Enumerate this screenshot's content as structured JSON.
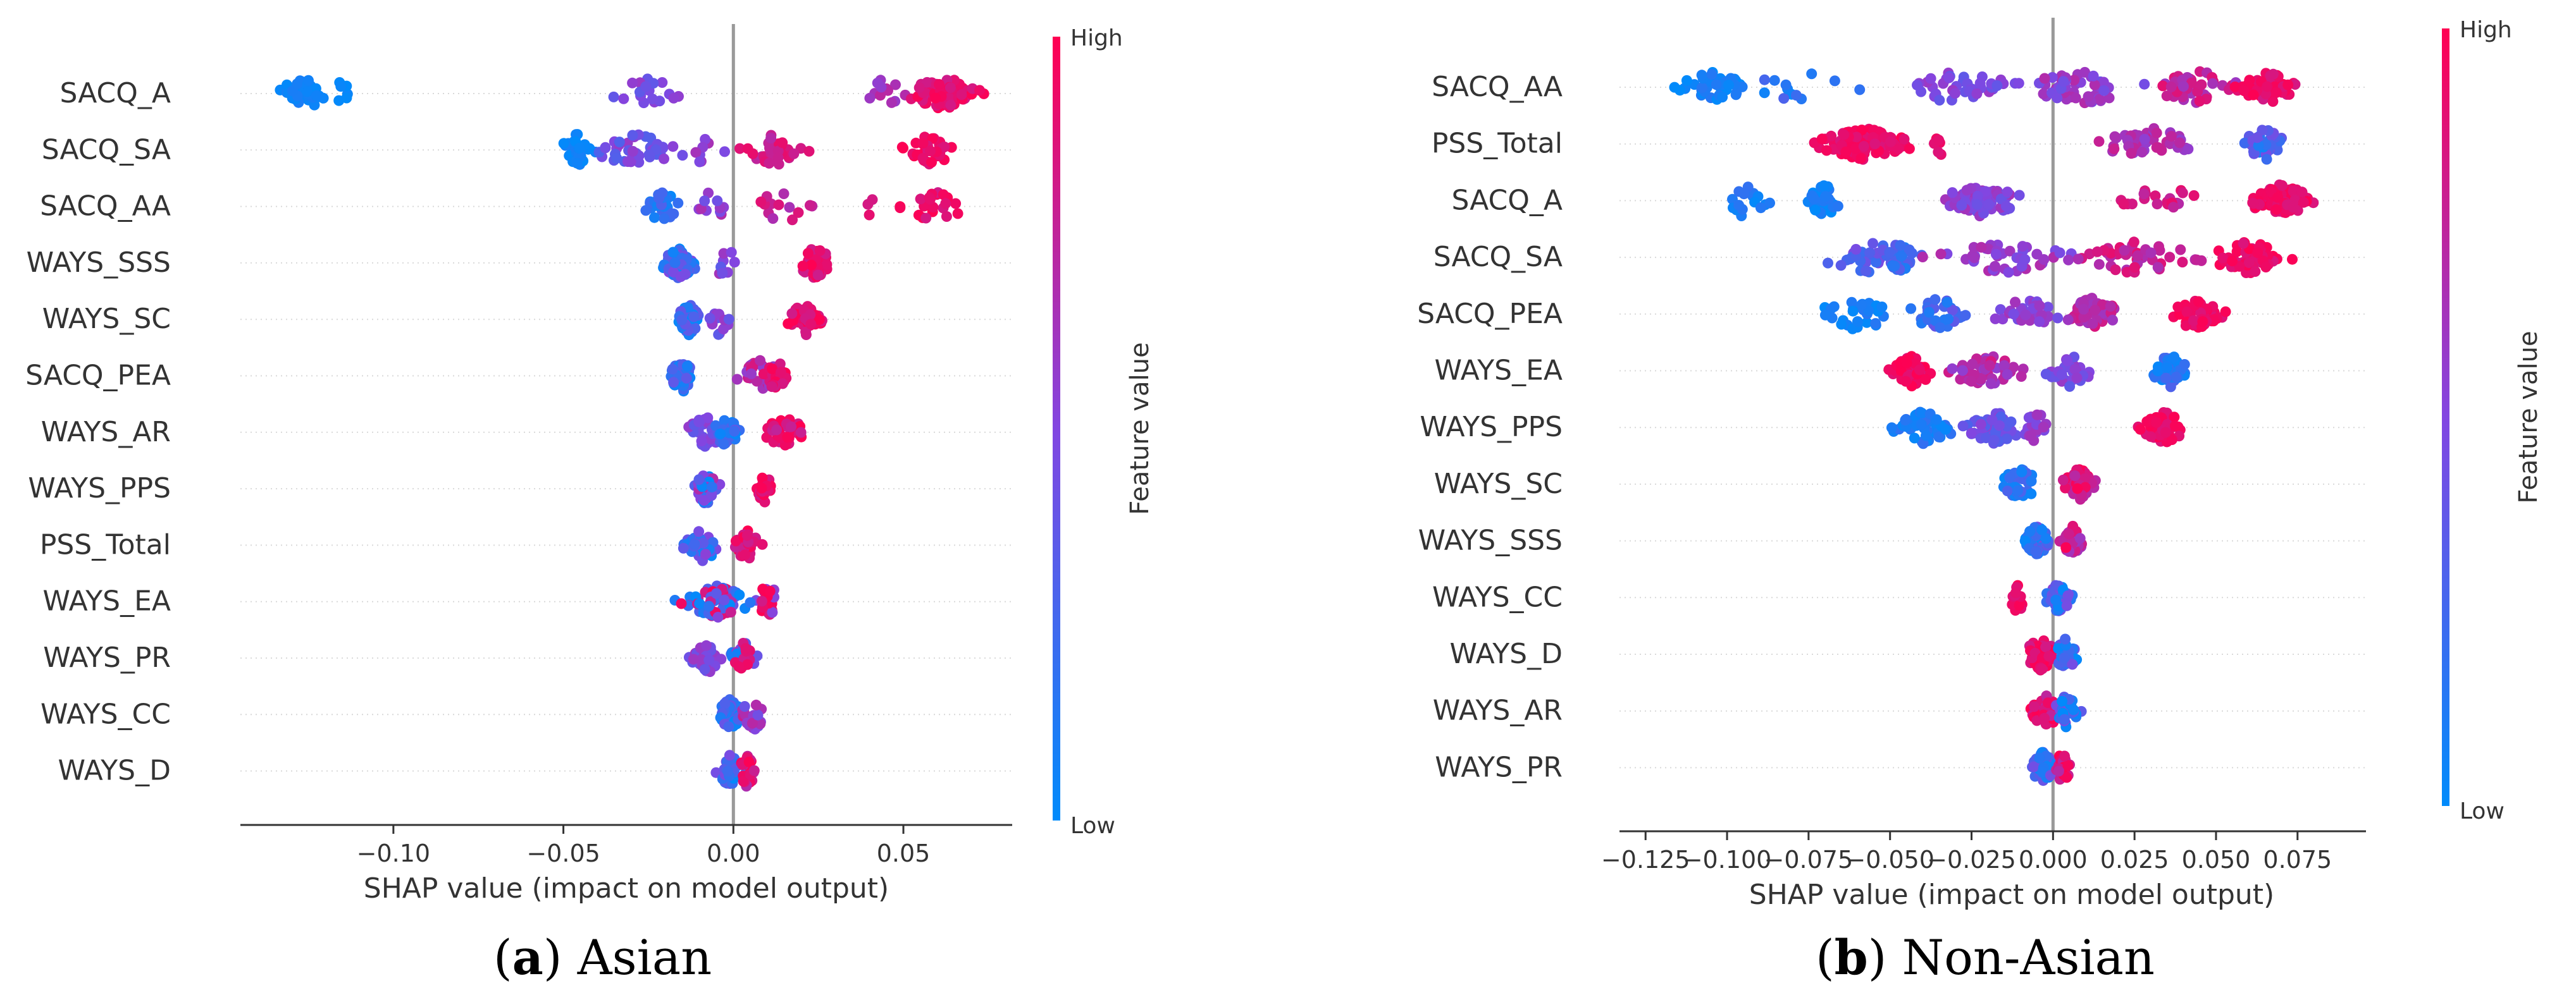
{
  "colors": {
    "low": "#008bfb",
    "high": "#ff0052",
    "zero_line": "#999999",
    "axis": "#333333",
    "grid": "#d9d9d9"
  },
  "chart_data": [
    {
      "type": "scatter",
      "subtype": "shap-beeswarm",
      "caption_label": "a",
      "caption_text": "Asian",
      "xlabel": "SHAP value (impact on model output)",
      "colorbar_label": "Feature value",
      "colorbar_high": "High",
      "colorbar_low": "Low",
      "xlim": [
        -0.145,
        0.082
      ],
      "xticks": [
        -0.1,
        -0.05,
        0.0,
        0.05
      ],
      "xtick_labels": [
        "−0.10",
        "−0.05",
        "0.00",
        "0.05"
      ],
      "features": [
        {
          "name": "SACQ_A",
          "clusters": [
            {
              "center": -0.127,
              "spread": 0.007,
              "count": 40,
              "low": 0.0,
              "high": 0.1
            },
            {
              "center": -0.115,
              "spread": 0.002,
              "count": 6,
              "low": 0.0,
              "high": 0.05
            },
            {
              "center": -0.025,
              "spread": 0.008,
              "count": 18,
              "low": 0.35,
              "high": 0.6
            },
            {
              "center": 0.045,
              "spread": 0.006,
              "count": 12,
              "low": 0.55,
              "high": 0.75
            },
            {
              "center": 0.062,
              "spread": 0.009,
              "count": 70,
              "low": 0.8,
              "high": 1.0
            }
          ]
        },
        {
          "name": "SACQ_SA",
          "clusters": [
            {
              "center": -0.046,
              "spread": 0.004,
              "count": 30,
              "low": 0.0,
              "high": 0.1
            },
            {
              "center": -0.028,
              "spread": 0.012,
              "count": 40,
              "low": 0.3,
              "high": 0.6
            },
            {
              "center": -0.008,
              "spread": 0.004,
              "count": 8,
              "low": 0.4,
              "high": 0.65
            },
            {
              "center": 0.012,
              "spread": 0.007,
              "count": 30,
              "low": 0.7,
              "high": 0.95
            },
            {
              "center": 0.058,
              "spread": 0.006,
              "count": 40,
              "low": 0.85,
              "high": 1.0
            }
          ]
        },
        {
          "name": "SACQ_AA",
          "clusters": [
            {
              "center": -0.021,
              "spread": 0.004,
              "count": 30,
              "low": 0.0,
              "high": 0.3
            },
            {
              "center": -0.006,
              "spread": 0.005,
              "count": 10,
              "low": 0.4,
              "high": 0.7
            },
            {
              "center": 0.015,
              "spread": 0.009,
              "count": 14,
              "low": 0.65,
              "high": 0.9
            },
            {
              "center": 0.04,
              "spread": 0.001,
              "count": 3,
              "low": 0.7,
              "high": 0.9
            },
            {
              "center": 0.058,
              "spread": 0.008,
              "count": 22,
              "low": 0.8,
              "high": 1.0
            }
          ]
        },
        {
          "name": "WAYS_SSS",
          "clusters": [
            {
              "center": -0.016,
              "spread": 0.004,
              "count": 60,
              "low": 0.0,
              "high": 0.5
            },
            {
              "center": -0.003,
              "spread": 0.004,
              "count": 8,
              "low": 0.35,
              "high": 0.65
            },
            {
              "center": 0.024,
              "spread": 0.004,
              "count": 40,
              "low": 0.8,
              "high": 1.0
            }
          ]
        },
        {
          "name": "WAYS_SC",
          "clusters": [
            {
              "center": -0.013,
              "spread": 0.003,
              "count": 55,
              "low": 0.0,
              "high": 0.4
            },
            {
              "center": -0.004,
              "spread": 0.003,
              "count": 14,
              "low": 0.3,
              "high": 0.6
            },
            {
              "center": 0.021,
              "spread": 0.004,
              "count": 40,
              "low": 0.8,
              "high": 1.0
            }
          ]
        },
        {
          "name": "SACQ_PEA",
          "clusters": [
            {
              "center": -0.015,
              "spread": 0.003,
              "count": 55,
              "low": 0.0,
              "high": 0.4
            },
            {
              "center": 0.008,
              "spread": 0.005,
              "count": 40,
              "low": 0.55,
              "high": 0.85
            },
            {
              "center": 0.013,
              "spread": 0.003,
              "count": 20,
              "low": 0.8,
              "high": 1.0
            }
          ]
        },
        {
          "name": "WAYS_AR",
          "clusters": [
            {
              "center": -0.008,
              "spread": 0.005,
              "count": 30,
              "low": 0.35,
              "high": 0.6
            },
            {
              "center": -0.002,
              "spread": 0.003,
              "count": 30,
              "low": 0.0,
              "high": 0.4
            },
            {
              "center": 0.015,
              "spread": 0.005,
              "count": 35,
              "low": 0.75,
              "high": 1.0
            }
          ]
        },
        {
          "name": "WAYS_PPS",
          "clusters": [
            {
              "center": -0.008,
              "spread": 0.003,
              "count": 50,
              "low": 0.0,
              "high": 0.7
            },
            {
              "center": 0.009,
              "spread": 0.002,
              "count": 25,
              "low": 0.8,
              "high": 1.0
            }
          ]
        },
        {
          "name": "PSS_Total",
          "clusters": [
            {
              "center": -0.009,
              "spread": 0.004,
              "count": 40,
              "low": 0.0,
              "high": 0.55
            },
            {
              "center": 0.004,
              "spread": 0.003,
              "count": 40,
              "low": 0.75,
              "high": 1.0
            }
          ]
        },
        {
          "name": "WAYS_EA",
          "clusters": [
            {
              "center": -0.005,
              "spread": 0.008,
              "count": 60,
              "low": 0.0,
              "high": 1.0
            },
            {
              "center": 0.01,
              "spread": 0.004,
              "count": 20,
              "low": 0.5,
              "high": 1.0
            }
          ]
        },
        {
          "name": "WAYS_PR",
          "clusters": [
            {
              "center": -0.008,
              "spread": 0.004,
              "count": 40,
              "low": 0.35,
              "high": 0.65
            },
            {
              "center": 0.003,
              "spread": 0.003,
              "count": 30,
              "low": 0.0,
              "high": 0.6
            },
            {
              "center": 0.003,
              "spread": 0.002,
              "count": 10,
              "low": 0.8,
              "high": 1.0
            }
          ]
        },
        {
          "name": "WAYS_CC",
          "clusters": [
            {
              "center": -0.001,
              "spread": 0.003,
              "count": 55,
              "low": 0.0,
              "high": 0.4
            },
            {
              "center": 0.006,
              "spread": 0.003,
              "count": 25,
              "low": 0.4,
              "high": 0.9
            }
          ]
        },
        {
          "name": "WAYS_D",
          "clusters": [
            {
              "center": -0.001,
              "spread": 0.003,
              "count": 45,
              "low": 0.0,
              "high": 0.5
            },
            {
              "center": 0.004,
              "spread": 0.002,
              "count": 25,
              "low": 0.6,
              "high": 1.0
            }
          ]
        }
      ]
    },
    {
      "type": "scatter",
      "subtype": "shap-beeswarm",
      "caption_label": "b",
      "caption_text": "Non-Asian",
      "xlabel": "SHAP value (impact on model output)",
      "colorbar_label": "Feature value",
      "colorbar_high": "High",
      "colorbar_low": "Low",
      "xlim": [
        -0.133,
        0.096
      ],
      "xticks": [
        -0.125,
        -0.1,
        -0.075,
        -0.05,
        -0.025,
        0.0,
        0.025,
        0.05,
        0.075
      ],
      "xtick_labels": [
        "−0.125",
        "−0.100",
        "−0.075",
        "−0.050",
        "−0.025",
        "0.000",
        "0.025",
        "0.050",
        "0.075"
      ],
      "features": [
        {
          "name": "SACQ_AA",
          "clusters": [
            {
              "center": -0.105,
              "spread": 0.008,
              "count": 45,
              "low": 0.0,
              "high": 0.15
            },
            {
              "center": -0.078,
              "spread": 0.012,
              "count": 12,
              "low": 0.0,
              "high": 0.3
            },
            {
              "center": -0.03,
              "spread": 0.015,
              "count": 40,
              "low": 0.35,
              "high": 0.6
            },
            {
              "center": 0.01,
              "spread": 0.015,
              "count": 50,
              "low": 0.4,
              "high": 0.7
            },
            {
              "center": 0.045,
              "spread": 0.012,
              "count": 40,
              "low": 0.6,
              "high": 0.9
            },
            {
              "center": 0.066,
              "spread": 0.007,
              "count": 70,
              "low": 0.8,
              "high": 1.0
            }
          ]
        },
        {
          "name": "PSS_Total",
          "clusters": [
            {
              "center": -0.058,
              "spread": 0.011,
              "count": 130,
              "low": 0.85,
              "high": 1.0
            },
            {
              "center": -0.035,
              "spread": 0.003,
              "count": 6,
              "low": 0.8,
              "high": 1.0
            },
            {
              "center": 0.03,
              "spread": 0.012,
              "count": 45,
              "low": 0.55,
              "high": 0.8
            },
            {
              "center": 0.065,
              "spread": 0.005,
              "count": 40,
              "low": 0.05,
              "high": 0.45
            }
          ]
        },
        {
          "name": "SACQ_A",
          "clusters": [
            {
              "center": -0.095,
              "spread": 0.006,
              "count": 18,
              "low": 0.0,
              "high": 0.2
            },
            {
              "center": -0.07,
              "spread": 0.004,
              "count": 35,
              "low": 0.0,
              "high": 0.15
            },
            {
              "center": -0.022,
              "spread": 0.01,
              "count": 65,
              "low": 0.4,
              "high": 0.65
            },
            {
              "center": 0.033,
              "spread": 0.01,
              "count": 20,
              "low": 0.7,
              "high": 0.95
            },
            {
              "center": 0.07,
              "spread": 0.008,
              "count": 75,
              "low": 0.85,
              "high": 1.0
            }
          ]
        },
        {
          "name": "SACQ_SA",
          "clusters": [
            {
              "center": -0.055,
              "spread": 0.012,
              "count": 40,
              "low": 0.2,
              "high": 0.5
            },
            {
              "center": -0.047,
              "spread": 0.003,
              "count": 22,
              "low": 0.1,
              "high": 0.35
            },
            {
              "center": -0.015,
              "spread": 0.015,
              "count": 45,
              "low": 0.45,
              "high": 0.7
            },
            {
              "center": 0.025,
              "spread": 0.015,
              "count": 45,
              "low": 0.65,
              "high": 0.9
            },
            {
              "center": 0.06,
              "spread": 0.009,
              "count": 60,
              "low": 0.85,
              "high": 1.0
            }
          ]
        },
        {
          "name": "SACQ_PEA",
          "clusters": [
            {
              "center": -0.06,
              "spread": 0.01,
              "count": 30,
              "low": 0.0,
              "high": 0.15
            },
            {
              "center": -0.035,
              "spread": 0.008,
              "count": 30,
              "low": 0.1,
              "high": 0.4
            },
            {
              "center": -0.008,
              "spread": 0.008,
              "count": 30,
              "low": 0.4,
              "high": 0.65
            },
            {
              "center": 0.012,
              "spread": 0.007,
              "count": 45,
              "low": 0.6,
              "high": 0.85
            },
            {
              "center": 0.044,
              "spread": 0.006,
              "count": 45,
              "low": 0.85,
              "high": 1.0
            }
          ]
        },
        {
          "name": "WAYS_EA",
          "clusters": [
            {
              "center": -0.043,
              "spread": 0.005,
              "count": 55,
              "low": 0.85,
              "high": 1.0
            },
            {
              "center": -0.02,
              "spread": 0.01,
              "count": 55,
              "low": 0.55,
              "high": 0.85
            },
            {
              "center": 0.005,
              "spread": 0.006,
              "count": 30,
              "low": 0.35,
              "high": 0.6
            },
            {
              "center": 0.036,
              "spread": 0.005,
              "count": 50,
              "low": 0.0,
              "high": 0.3
            }
          ]
        },
        {
          "name": "WAYS_PPS",
          "clusters": [
            {
              "center": -0.04,
              "spread": 0.008,
              "count": 45,
              "low": 0.0,
              "high": 0.2
            },
            {
              "center": -0.018,
              "spread": 0.007,
              "count": 50,
              "low": 0.3,
              "high": 0.55
            },
            {
              "center": -0.005,
              "spread": 0.004,
              "count": 20,
              "low": 0.45,
              "high": 0.65
            },
            {
              "center": 0.034,
              "spread": 0.006,
              "count": 60,
              "low": 0.85,
              "high": 1.0
            }
          ]
        },
        {
          "name": "WAYS_SC",
          "clusters": [
            {
              "center": -0.01,
              "spread": 0.005,
              "count": 40,
              "low": 0.0,
              "high": 0.3
            },
            {
              "center": 0.008,
              "spread": 0.004,
              "count": 55,
              "low": 0.7,
              "high": 1.0
            }
          ]
        },
        {
          "name": "WAYS_SSS",
          "clusters": [
            {
              "center": -0.005,
              "spread": 0.003,
              "count": 50,
              "low": 0.0,
              "high": 0.5
            },
            {
              "center": 0.006,
              "spread": 0.003,
              "count": 40,
              "low": 0.6,
              "high": 1.0
            }
          ]
        },
        {
          "name": "WAYS_CC",
          "clusters": [
            {
              "center": -0.011,
              "spread": 0.002,
              "count": 14,
              "low": 0.85,
              "high": 1.0
            },
            {
              "center": 0.002,
              "spread": 0.003,
              "count": 60,
              "low": 0.0,
              "high": 0.55
            }
          ]
        },
        {
          "name": "WAYS_D",
          "clusters": [
            {
              "center": -0.004,
              "spread": 0.004,
              "count": 60,
              "low": 0.8,
              "high": 1.0
            },
            {
              "center": 0.004,
              "spread": 0.003,
              "count": 30,
              "low": 0.0,
              "high": 0.5
            }
          ]
        },
        {
          "name": "WAYS_AR",
          "clusters": [
            {
              "center": -0.002,
              "spread": 0.004,
              "count": 50,
              "low": 0.7,
              "high": 1.0
            },
            {
              "center": 0.004,
              "spread": 0.003,
              "count": 35,
              "low": 0.0,
              "high": 0.5
            }
          ]
        },
        {
          "name": "WAYS_PR",
          "clusters": [
            {
              "center": -0.003,
              "spread": 0.003,
              "count": 45,
              "low": 0.0,
              "high": 0.5
            },
            {
              "center": 0.003,
              "spread": 0.002,
              "count": 30,
              "low": 0.7,
              "high": 1.0
            }
          ]
        }
      ]
    }
  ]
}
